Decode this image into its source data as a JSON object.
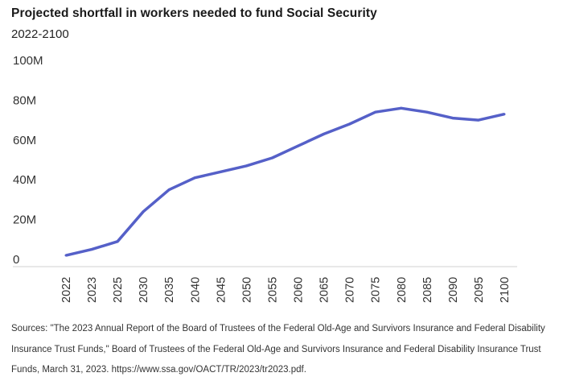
{
  "chart_data": {
    "type": "line",
    "title": "Projected shortfall in workers needed to fund Social Security",
    "subtitle": "2022-2100",
    "xlabel": "",
    "ylabel": "",
    "categories": [
      "2022",
      "2023",
      "2025",
      "2030",
      "2035",
      "2040",
      "2045",
      "2050",
      "2055",
      "2060",
      "2065",
      "2070",
      "2075",
      "2080",
      "2085",
      "2090",
      "2095",
      "2100"
    ],
    "series": [
      {
        "name": "Projected shortfall in workers",
        "values": [
          2,
          5,
          9,
          24,
          35,
          41,
          44,
          47,
          51,
          57,
          63,
          68,
          74,
          76,
          74,
          71,
          70,
          73
        ],
        "unit": "millions",
        "color": "#5560c8"
      }
    ],
    "ylim": [
      0,
      100
    ],
    "yticks": [
      0,
      20,
      40,
      60,
      80,
      100
    ],
    "ytick_labels": [
      "0",
      "20M",
      "40M",
      "60M",
      "80M",
      "100M"
    ],
    "grid": false,
    "legend": "none"
  },
  "footer": {
    "sources": "Sources: \"The 2023 Annual Report of the Board of Trustees of the Federal Old-Age and Survivors Insurance and Federal Disability Insurance Trust Funds,\" Board of Trustees of the Federal Old-Age and Survivors Insurance and Federal Disability Insurance Trust Funds, March 31, 2023. https://www.ssa.gov/OACT/TR/2023/tr2023.pdf."
  },
  "colors": {
    "line": "#5560c8",
    "axis": "#d0d0d0",
    "text": "#333333"
  }
}
